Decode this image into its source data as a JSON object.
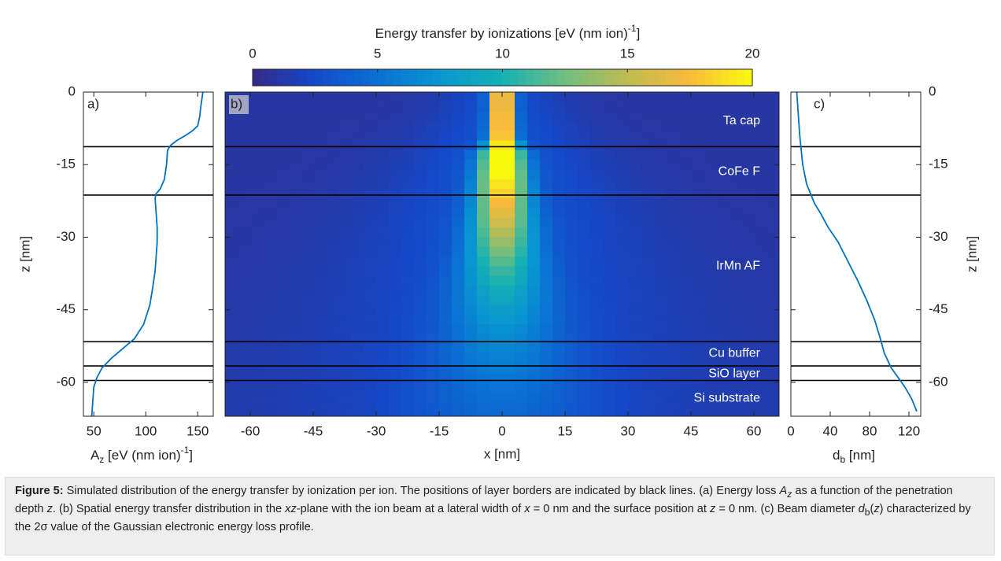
{
  "chart_data": [
    {
      "panel": "colorbar",
      "type": "colorbar",
      "title": "Energy transfer by ionizations [eV (nm ion)",
      "title_exponent": "-1",
      "title_close": "]",
      "range": [
        0,
        20
      ],
      "ticks": [
        "0",
        "5",
        "10",
        "15",
        "20"
      ],
      "tick_values": [
        0,
        5,
        10,
        15,
        20
      ],
      "colormap": "parula"
    },
    {
      "panel": "a",
      "panel_label": "a)",
      "type": "line",
      "xlabel": "A",
      "xlabel_sub": "z",
      "xlabel_rest": " [eV (nm ion)",
      "xlabel_exp": "-1",
      "xlabel_close": "]",
      "ylabel": "z [nm]",
      "xlim": [
        40,
        165
      ],
      "ylim": [
        -67,
        0
      ],
      "xticks": [
        "50",
        "100",
        "150"
      ],
      "xtick_values": [
        50,
        100,
        150
      ],
      "yticks": [
        "0",
        "-15",
        "-30",
        "-45",
        "-60"
      ],
      "ytick_values": [
        0,
        -15,
        -30,
        -45,
        -60
      ],
      "line_color": "#0072bd",
      "series": [
        {
          "x": [
            155,
            153,
            152,
            151,
            150,
            145,
            138,
            130,
            124,
            121,
            120,
            118,
            114,
            110,
            109,
            110,
            111,
            111,
            110,
            109,
            107,
            104,
            98,
            89,
            78,
            67,
            58,
            53,
            50,
            49,
            48
          ],
          "y": [
            0,
            -3,
            -5,
            -6,
            -7,
            -8,
            -9,
            -10,
            -11,
            -12,
            -15,
            -18,
            -20,
            -21,
            -22,
            -25,
            -28,
            -31,
            -34,
            -37,
            -40,
            -44,
            -48,
            -51,
            -53,
            -55,
            -57,
            -59,
            -61,
            -64,
            -67
          ]
        }
      ]
    },
    {
      "panel": "b",
      "panel_label": "b)",
      "type": "heatmap",
      "xlabel": "x [nm]",
      "xlim": [
        -66,
        66
      ],
      "ylim": [
        -67,
        0
      ],
      "xticks": [
        "-60",
        "-45",
        "-30",
        "-15",
        "0",
        "15",
        "30",
        "45",
        "60"
      ],
      "xtick_values": [
        -60,
        -45,
        -30,
        -15,
        0,
        15,
        30,
        45,
        60
      ],
      "yticks": [
        "0",
        "-15",
        "-30",
        "-45",
        "-60"
      ],
      "ytick_values": [
        0,
        -15,
        -30,
        -45,
        -60
      ],
      "x_cell_nm": 3,
      "z_cell_nm": 2,
      "z_rows": [
        {
          "z": -1,
          "peak": 20,
          "core_sigma": 1.9,
          "wing_amp": 2.0,
          "wing_sigma": 9
        },
        {
          "z": -3,
          "peak": 20,
          "core_sigma": 1.9,
          "wing_amp": 2.0,
          "wing_sigma": 10
        },
        {
          "z": -5,
          "peak": 20,
          "core_sigma": 2.0,
          "wing_amp": 2.0,
          "wing_sigma": 11
        },
        {
          "z": -7,
          "peak": 20,
          "core_sigma": 2.0,
          "wing_amp": 2.1,
          "wing_sigma": 12
        },
        {
          "z": -9,
          "peak": 20,
          "core_sigma": 2.1,
          "wing_amp": 2.1,
          "wing_sigma": 13
        },
        {
          "z": -11,
          "peak": 20,
          "core_sigma": 2.6,
          "wing_amp": 2.2,
          "wing_sigma": 14
        },
        {
          "z": -13,
          "peak": 20,
          "core_sigma": 3.4,
          "wing_amp": 2.3,
          "wing_sigma": 15
        },
        {
          "z": -15,
          "peak": 19.5,
          "core_sigma": 3.6,
          "wing_amp": 2.3,
          "wing_sigma": 16
        },
        {
          "z": -17,
          "peak": 19,
          "core_sigma": 3.8,
          "wing_amp": 2.3,
          "wing_sigma": 17
        },
        {
          "z": -19,
          "peak": 18,
          "core_sigma": 4.0,
          "wing_amp": 2.3,
          "wing_sigma": 18
        },
        {
          "z": -21,
          "peak": 17,
          "core_sigma": 4.2,
          "wing_amp": 2.3,
          "wing_sigma": 19
        },
        {
          "z": -23,
          "peak": 16,
          "core_sigma": 4.4,
          "wing_amp": 2.2,
          "wing_sigma": 20
        },
        {
          "z": -25,
          "peak": 15,
          "core_sigma": 4.7,
          "wing_amp": 2.2,
          "wing_sigma": 21
        },
        {
          "z": -27,
          "peak": 14,
          "core_sigma": 5.0,
          "wing_amp": 2.2,
          "wing_sigma": 22
        },
        {
          "z": -29,
          "peak": 13,
          "core_sigma": 5.3,
          "wing_amp": 2.1,
          "wing_sigma": 23
        },
        {
          "z": -31,
          "peak": 12,
          "core_sigma": 5.6,
          "wing_amp": 2.1,
          "wing_sigma": 24
        },
        {
          "z": -33,
          "peak": 11,
          "core_sigma": 6.0,
          "wing_amp": 2.0,
          "wing_sigma": 25
        },
        {
          "z": -35,
          "peak": 10,
          "core_sigma": 6.4,
          "wing_amp": 2.0,
          "wing_sigma": 26
        },
        {
          "z": -37,
          "peak": 9.2,
          "core_sigma": 6.8,
          "wing_amp": 1.9,
          "wing_sigma": 27
        },
        {
          "z": -39,
          "peak": 8.5,
          "core_sigma": 7.2,
          "wing_amp": 1.9,
          "wing_sigma": 28
        },
        {
          "z": -41,
          "peak": 7.8,
          "core_sigma": 7.7,
          "wing_amp": 1.8,
          "wing_sigma": 29
        },
        {
          "z": -43,
          "peak": 7.2,
          "core_sigma": 8.2,
          "wing_amp": 1.8,
          "wing_sigma": 30
        },
        {
          "z": -45,
          "peak": 6.6,
          "core_sigma": 8.7,
          "wing_amp": 1.7,
          "wing_sigma": 31
        },
        {
          "z": -47,
          "peak": 6.1,
          "core_sigma": 9.2,
          "wing_amp": 1.7,
          "wing_sigma": 32
        },
        {
          "z": -49,
          "peak": 5.6,
          "core_sigma": 9.7,
          "wing_amp": 1.6,
          "wing_sigma": 33
        },
        {
          "z": -51,
          "peak": 5.2,
          "core_sigma": 10.2,
          "wing_amp": 1.6,
          "wing_sigma": 34
        },
        {
          "z": -53,
          "peak": 4.9,
          "core_sigma": 10.8,
          "wing_amp": 1.6,
          "wing_sigma": 35
        },
        {
          "z": -55,
          "peak": 4.6,
          "core_sigma": 11.4,
          "wing_amp": 1.5,
          "wing_sigma": 36
        },
        {
          "z": -57,
          "peak": 4.3,
          "core_sigma": 12.0,
          "wing_amp": 1.5,
          "wing_sigma": 37
        },
        {
          "z": -59,
          "peak": 4.0,
          "core_sigma": 12.6,
          "wing_amp": 1.4,
          "wing_sigma": 38
        },
        {
          "z": -61,
          "peak": 3.8,
          "core_sigma": 13.2,
          "wing_amp": 1.4,
          "wing_sigma": 39
        },
        {
          "z": -63,
          "peak": 3.6,
          "core_sigma": 13.8,
          "wing_amp": 1.4,
          "wing_sigma": 40
        },
        {
          "z": -65,
          "peak": 3.4,
          "core_sigma": 14.4,
          "wing_amp": 1.3,
          "wing_sigma": 41
        },
        {
          "z": -67,
          "peak": 3.2,
          "core_sigma": 15.0,
          "wing_amp": 1.3,
          "wing_sigma": 42
        }
      ],
      "background_level": 1.0,
      "layer_labels": [
        {
          "text": "Ta cap",
          "z": -6
        },
        {
          "text": "CoFe F",
          "z": -16.5
        },
        {
          "text": "IrMn AF",
          "z": -36
        },
        {
          "text": "Cu buffer",
          "z": -54
        },
        {
          "text": "SiO layer",
          "z": -58.3
        },
        {
          "text": "Si substrate",
          "z": -63.3
        }
      ]
    },
    {
      "panel": "c",
      "panel_label": "c)",
      "type": "line",
      "xlabel": "d",
      "xlabel_sub": "b",
      "xlabel_rest": " [nm]",
      "ylabel": "z [nm]",
      "xlim": [
        0,
        132
      ],
      "ylim": [
        -67,
        0
      ],
      "xticks": [
        "0",
        "40",
        "80",
        "120"
      ],
      "xtick_values": [
        0,
        40,
        80,
        120
      ],
      "yticks": [
        "0",
        "-15",
        "-30",
        "-45",
        "-60"
      ],
      "ytick_values": [
        0,
        -15,
        -30,
        -45,
        -60
      ],
      "line_color": "#0072bd",
      "series": [
        {
          "x": [
            6,
            7,
            8,
            9,
            10,
            11,
            12,
            14,
            16,
            20,
            24,
            30,
            38,
            48,
            58,
            68,
            77,
            85,
            91,
            95,
            102,
            109,
            116,
            123,
            128
          ],
          "y": [
            0,
            -3,
            -6,
            -9,
            -11,
            -13,
            -15,
            -17,
            -19,
            -21,
            -23,
            -25,
            -28,
            -31,
            -35,
            -39,
            -43,
            -47,
            -51,
            -54,
            -57,
            -59,
            -61,
            -63.5,
            -66
          ]
        }
      ]
    }
  ],
  "layer_borders_nm": [
    -11.3,
    -21.3,
    -51.6,
    -56.6,
    -59.6
  ],
  "caption": {
    "label": "Figure 5:",
    "text": " Simulated distribution of the energy transfer by ionization per ion. The positions of layer borders are indicated by black lines. (a) Energy loss A_z as a function of the penetration depth z. (b) Spatial energy transfer distribution in the xz-plane with the ion beam at a lateral width of x = 0 nm and the surface position at z = 0 nm. (c) Beam diameter d_b(z) characterized by the 2σ value of the Gaussian electronic energy loss profile.",
    "part1": " Simulated distribution of the energy transfer by ionization per ion. The positions of layer borders are indicated by black lines. (a) Energy loss ",
    "az_main": "A",
    "az_sub": "z",
    "part2": " as a function of the penetration depth ",
    "z1": "z",
    "part3": ". (b) Spatial energy transfer distribution in the ",
    "xz": "xz",
    "part4": "-plane with the ion beam at a lateral width of ",
    "x_var": "x",
    "part5": " = 0 nm and the surface position at ",
    "z2": "z",
    "part6": " = 0 nm. (c) Beam diameter ",
    "db_main": "d",
    "db_sub": "b",
    "db_open": "(",
    "z3": "z",
    "part7": ") characterized by the 2σ value of the Gaussian electronic energy loss profile."
  }
}
